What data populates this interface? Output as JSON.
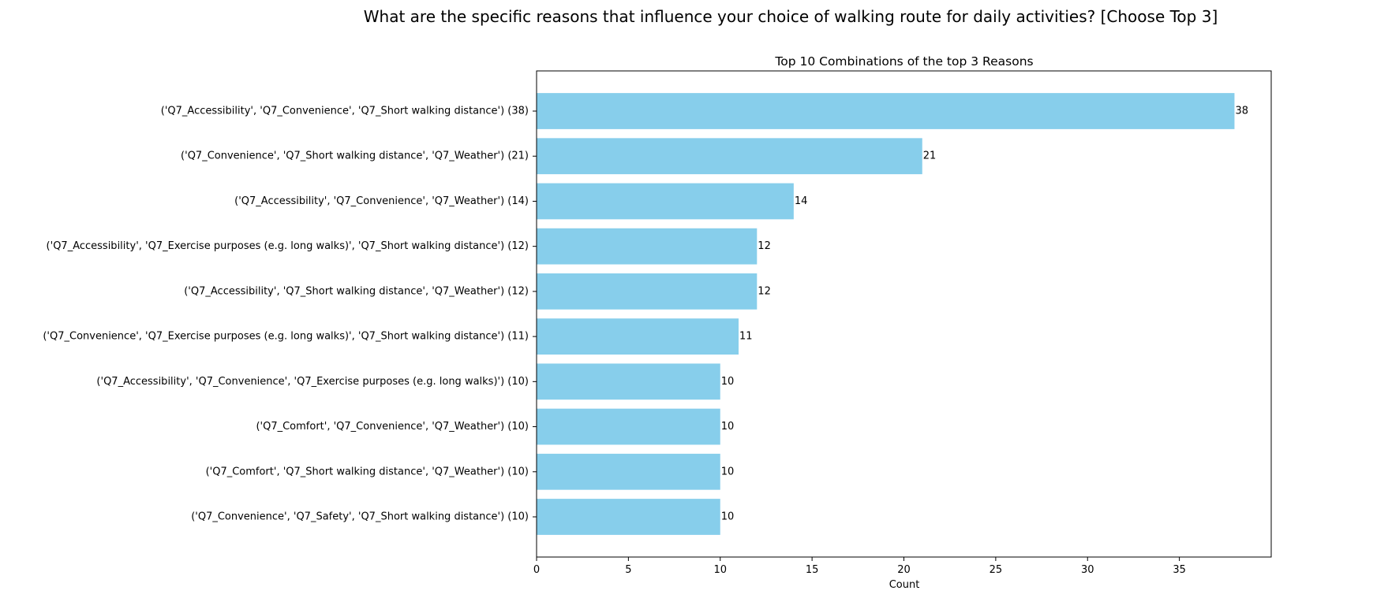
{
  "figure": {
    "suptitle": "What are the specific reasons that influence your choice of walking route for daily activities? [Choose Top 3]"
  },
  "chart_data": {
    "type": "bar",
    "orientation": "horizontal",
    "title": "Top 10 Combinations of the top 3 Reasons",
    "xlabel": "Count",
    "ylabel": "",
    "xlim": [
      0,
      40
    ],
    "xticks": [
      0,
      5,
      10,
      15,
      20,
      25,
      30,
      35
    ],
    "grid": false,
    "legend": "none",
    "bar_color": "#87ceeb",
    "categories": [
      "('Q7_Accessibility', 'Q7_Convenience', 'Q7_Short walking distance') (38)",
      "('Q7_Convenience', 'Q7_Short walking distance', 'Q7_Weather') (21)",
      "('Q7_Accessibility', 'Q7_Convenience', 'Q7_Weather') (14)",
      "('Q7_Accessibility', 'Q7_Exercise purposes (e.g. long walks)', 'Q7_Short walking distance') (12)",
      "('Q7_Accessibility', 'Q7_Short walking distance', 'Q7_Weather') (12)",
      "('Q7_Convenience', 'Q7_Exercise purposes (e.g. long walks)', 'Q7_Short walking distance') (11)",
      "('Q7_Accessibility', 'Q7_Convenience', 'Q7_Exercise purposes (e.g. long walks)') (10)",
      "('Q7_Comfort', 'Q7_Convenience', 'Q7_Weather') (10)",
      "('Q7_Comfort', 'Q7_Short walking distance', 'Q7_Weather') (10)",
      "('Q7_Convenience', 'Q7_Safety', 'Q7_Short walking distance') (10)"
    ],
    "values": [
      38,
      21,
      14,
      12,
      12,
      11,
      10,
      10,
      10,
      10
    ],
    "data_labels": [
      "38",
      "21",
      "14",
      "12",
      "12",
      "11",
      "10",
      "10",
      "10",
      "10"
    ]
  }
}
